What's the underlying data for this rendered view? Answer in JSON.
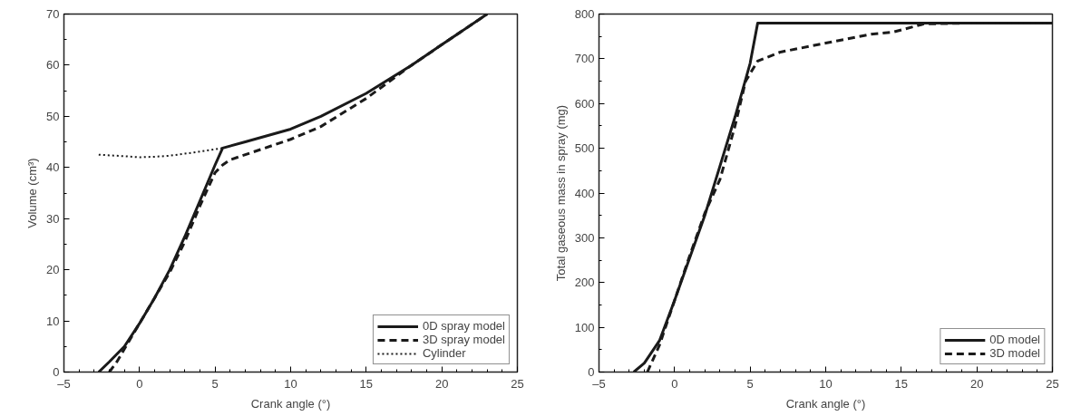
{
  "chart_data": [
    {
      "type": "line",
      "xlabel": "Crank angle (°)",
      "ylabel": "Volume (cm³)",
      "xlim": [
        -5,
        25
      ],
      "ylim": [
        0,
        70
      ],
      "xticks": [
        {
          "value": -5,
          "label": "–5"
        },
        0,
        5,
        10,
        15,
        20,
        25
      ],
      "yticks": [
        0,
        10,
        20,
        30,
        40,
        50,
        60,
        70
      ],
      "grid": false,
      "legend": "bottom right",
      "series": [
        {
          "name": "0D spray model",
          "color": "#1a1a1a",
          "line_style": "solid",
          "x": [
            -2.7,
            -2,
            -1,
            0,
            1,
            2,
            3,
            4,
            5,
            5.5,
            7,
            10,
            12,
            15,
            18,
            20,
            23
          ],
          "values": [
            0,
            2,
            5,
            9.5,
            14.5,
            20,
            26.5,
            33.5,
            40.5,
            43.8,
            45,
            47.5,
            50,
            54.5,
            60,
            64,
            70
          ]
        },
        {
          "name": "3D spray model",
          "color": "#1a1a1a",
          "line_style": "dashed",
          "x": [
            -2,
            -1.5,
            -1,
            0,
            1,
            2,
            3,
            4,
            5,
            5.5,
            6,
            8,
            10,
            12,
            15,
            18,
            20,
            23
          ],
          "values": [
            0,
            2,
            4.5,
            9.5,
            14.5,
            19.5,
            25.5,
            32.5,
            39,
            40.5,
            41.5,
            43.5,
            45.5,
            48,
            53.5,
            60,
            64,
            70
          ]
        },
        {
          "name": "Cylinder",
          "color": "#1a1a1a",
          "line_style": "dotted",
          "x": [
            -2.7,
            -1,
            0,
            1,
            2,
            3,
            4,
            5.5
          ],
          "values": [
            42.5,
            42.2,
            42,
            42.1,
            42.3,
            42.7,
            43.1,
            43.8
          ]
        }
      ]
    },
    {
      "type": "line",
      "xlabel": "Crank angle (°)",
      "ylabel": "Total gaseous mass in spray (mg)",
      "xlim": [
        -5,
        25
      ],
      "ylim": [
        0,
        800
      ],
      "xticks": [
        {
          "value": -5,
          "label": "–5"
        },
        0,
        5,
        10,
        15,
        20,
        25
      ],
      "yticks": [
        0,
        100,
        200,
        300,
        400,
        500,
        600,
        700,
        800
      ],
      "grid": false,
      "legend": "bottom right",
      "series": [
        {
          "name": "0D model",
          "color": "#1a1a1a",
          "line_style": "solid",
          "x": [
            -2.7,
            -2,
            -1,
            0,
            1,
            2,
            3,
            4,
            5,
            5.5,
            25
          ],
          "values": [
            0,
            20,
            70,
            160,
            255,
            350,
            460,
            570,
            690,
            780,
            780
          ]
        },
        {
          "name": "3D model",
          "color": "#1a1a1a",
          "line_style": "dashed",
          "x": [
            -1.8,
            -1,
            0,
            1,
            2,
            3,
            4,
            4.7,
            5.5,
            7,
            10,
            13,
            14.5,
            16.5,
            20,
            25
          ],
          "values": [
            0,
            60,
            160,
            260,
            355,
            430,
            550,
            650,
            695,
            715,
            735,
            755,
            760,
            778,
            780,
            780
          ]
        }
      ]
    }
  ]
}
